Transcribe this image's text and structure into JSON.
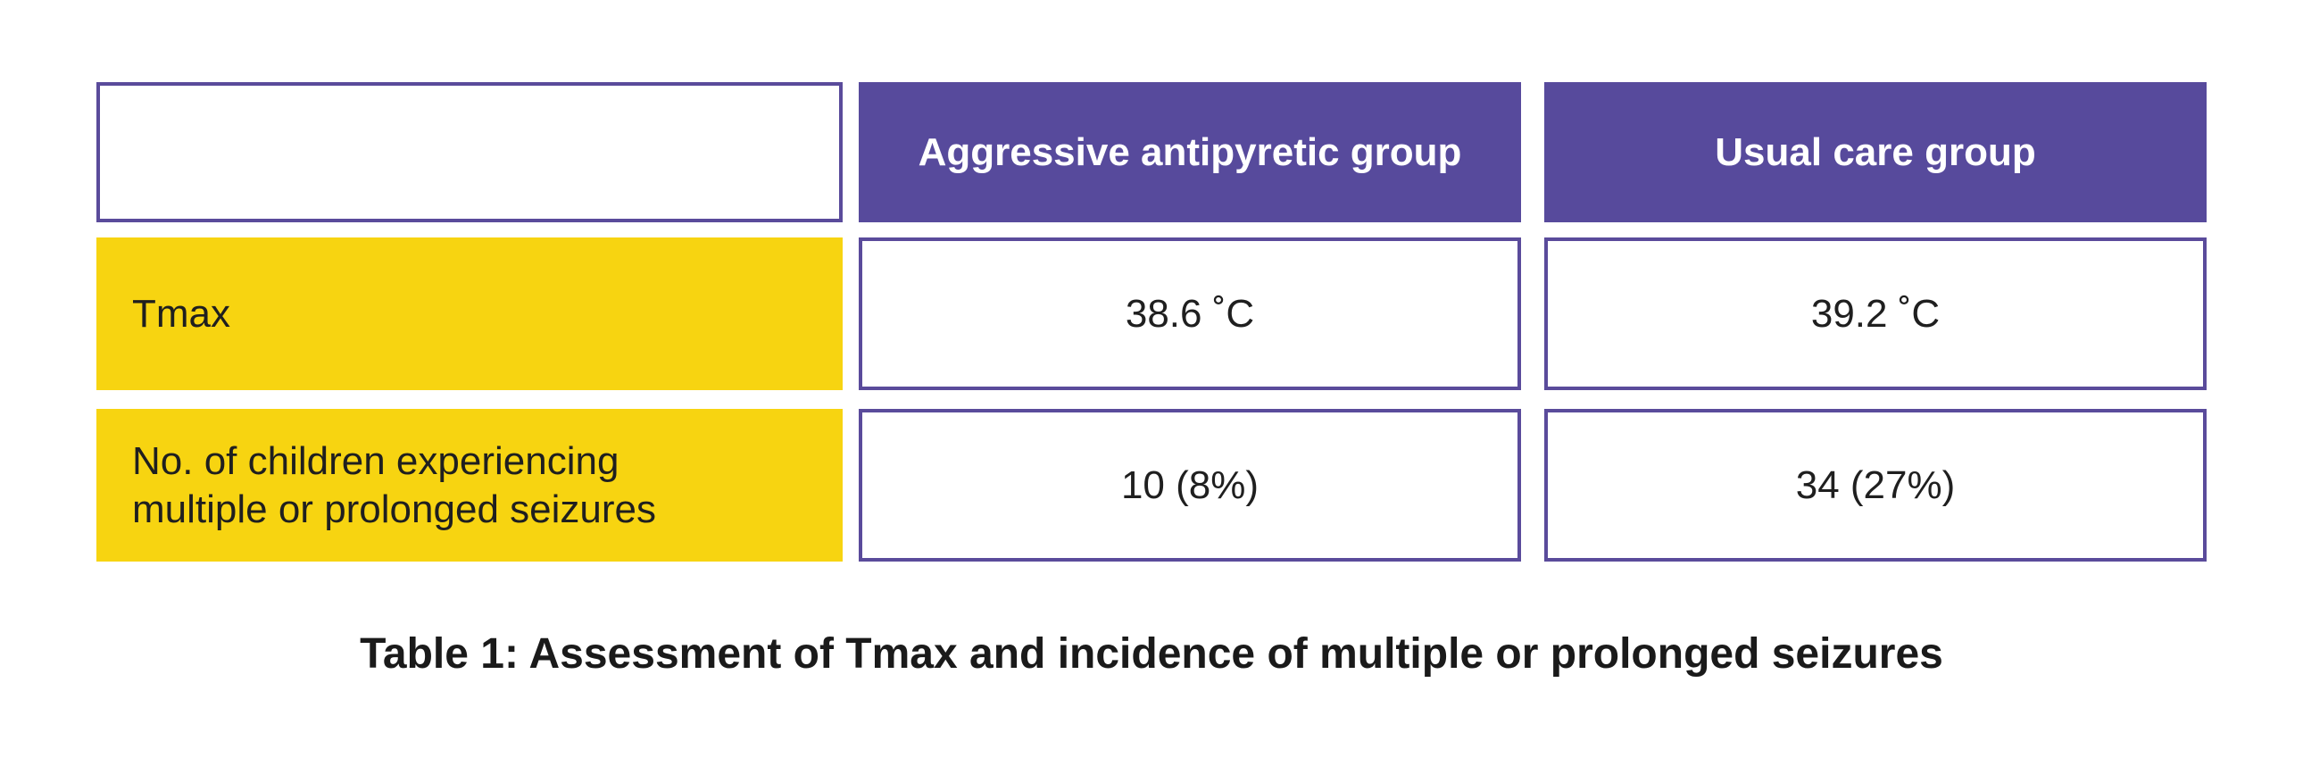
{
  "table": {
    "header": {
      "corner": "",
      "col1": "Aggressive antipyretic group",
      "col2": "Usual care group"
    },
    "rows": [
      {
        "label": "Tmax",
        "col1": "38.6 ˚C",
        "col2": "39.2 ˚C"
      },
      {
        "label_line1": "No. of children experiencing",
        "label_line2": "multiple or prolonged seizures",
        "col1": "10 (8%)",
        "col2": "34 (27%)"
      }
    ]
  },
  "caption": "Table 1: Assessment of Tmax and incidence of multiple or prolonged seizures",
  "colors": {
    "header_purple": "#574a9c",
    "border_purple": "#5a4b9b",
    "label_yellow": "#f7d411"
  }
}
